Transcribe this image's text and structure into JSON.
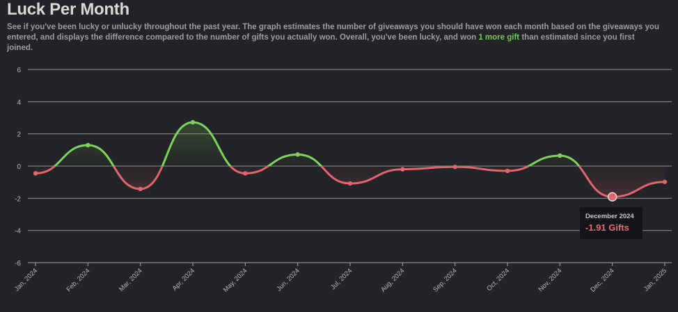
{
  "header": {
    "title": "Luck Per Month",
    "description_before": "See if you've been lucky or unlucky throughout the past year. The graph estimates the number of giveaways you should have won each month based on the giveaways you entered, and displays the difference compared to the number of gifts you actually won. Overall, you've been lucky, and won ",
    "description_highlight": "1 more gift",
    "description_after": " than estimated since you first joined."
  },
  "tooltip": {
    "date": "December 2024",
    "value": "-1.91 Gifts"
  },
  "colors": {
    "background": "#232427",
    "positive": "#7ed35f",
    "negative": "#e2646e",
    "grid": "#8d8e91",
    "tick_text": "#b5b6b8"
  },
  "chart_data": {
    "type": "line",
    "categories": [
      "Jan, 2024",
      "Feb, 2024",
      "Mar, 2024",
      "Apr, 2024",
      "May, 2024",
      "Jun, 2024",
      "Jul, 2024",
      "Aug, 2024",
      "Sep, 2024",
      "Oct, 2024",
      "Nov, 2024",
      "Dec, 2024",
      "Jan, 2025"
    ],
    "values": [
      -0.45,
      1.3,
      -1.42,
      2.72,
      -0.45,
      0.72,
      -1.08,
      -0.2,
      -0.05,
      -0.3,
      0.65,
      -1.91,
      -0.98
    ],
    "yticks": [
      6,
      4,
      2,
      0,
      -2,
      -4,
      -6
    ],
    "ylim": [
      -6,
      6
    ],
    "grid": true,
    "highlight_index": 11
  }
}
